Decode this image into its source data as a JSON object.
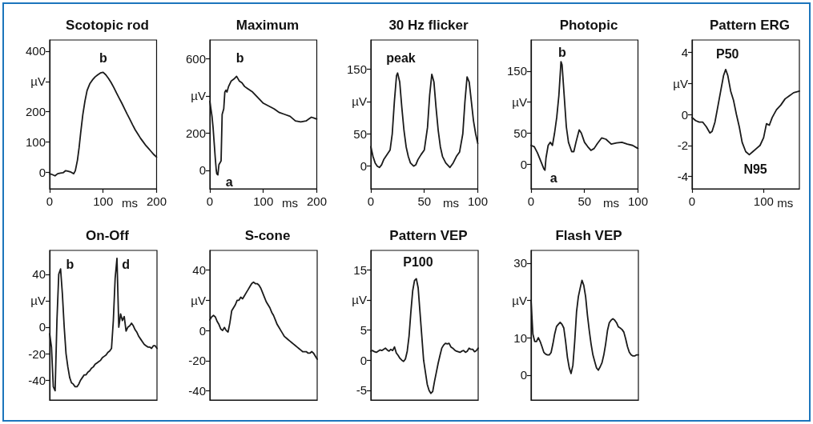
{
  "chart_data": [
    {
      "type": "line",
      "title": "Scotopic rod",
      "xlabel": "ms",
      "xlim": [
        0,
        200
      ],
      "xticks": [
        0,
        100,
        200
      ],
      "ylim": [
        -55,
        437
      ],
      "yticks": [
        0,
        100,
        200,
        {
          "value": 300,
          "label": "µV"
        },
        400
      ],
      "x": [
        0,
        5,
        10,
        15,
        20,
        25,
        30,
        35,
        40,
        45,
        48,
        52,
        55,
        58,
        62,
        66,
        70,
        75,
        80,
        85,
        90,
        95,
        100,
        105,
        110,
        115,
        120,
        125,
        130,
        135,
        140,
        145,
        150,
        155,
        160,
        165,
        170,
        175,
        180,
        185,
        190,
        195,
        200
      ],
      "series": [
        {
          "color": "#1a1a1a",
          "values": [
            -5,
            -8,
            -12,
            -5,
            -3,
            -2,
            5,
            3,
            0,
            -5,
            5,
            40,
            80,
            130,
            190,
            235,
            270,
            292,
            305,
            315,
            322,
            328,
            330,
            322,
            310,
            296,
            280,
            262,
            245,
            228,
            210,
            192,
            175,
            157,
            140,
            126,
            112,
            100,
            88,
            78,
            68,
            58,
            50
          ]
        }
      ],
      "annotations": [
        "b"
      ]
    },
    {
      "type": "line",
      "title": "Maximum",
      "xlabel": "ms",
      "xlim": [
        0,
        200
      ],
      "xticks": [
        0,
        100,
        200
      ],
      "ylim": [
        -100,
        700
      ],
      "yticks": [
        0,
        200,
        {
          "value": 400,
          "label": "µV"
        },
        600
      ],
      "x": [
        0,
        2,
        4,
        6,
        8,
        10,
        12,
        13,
        15,
        17,
        19,
        21,
        23,
        26,
        28,
        30,
        32,
        35,
        40,
        45,
        50,
        55,
        60,
        65,
        70,
        80,
        90,
        100,
        110,
        120,
        130,
        140,
        150,
        160,
        170,
        180,
        185,
        190,
        195,
        200
      ],
      "series": [
        {
          "color": "#1a1a1a",
          "values": [
            370,
            330,
            290,
            230,
            150,
            70,
            0,
            -20,
            -25,
            30,
            40,
            50,
            300,
            330,
            420,
            430,
            420,
            450,
            480,
            490,
            505,
            480,
            470,
            450,
            440,
            420,
            390,
            360,
            345,
            330,
            310,
            300,
            290,
            265,
            260,
            265,
            275,
            285,
            280,
            275
          ]
        }
      ],
      "annotations": [
        "b",
        "a"
      ]
    },
    {
      "type": "line",
      "title": "30 Hz flicker",
      "xlabel": "ms",
      "xlim": [
        0,
        100
      ],
      "xticks": [
        0,
        50,
        100
      ],
      "ylim": [
        -35,
        195
      ],
      "yticks": [
        0,
        50,
        {
          "value": 100,
          "label": "µV"
        },
        150
      ],
      "x": [
        0,
        2,
        4,
        6,
        8,
        10,
        12,
        14,
        16,
        18,
        20,
        22,
        24,
        25,
        27,
        29,
        31,
        33,
        35,
        37,
        40,
        42,
        44,
        47,
        50,
        53,
        55,
        57,
        59,
        61,
        63,
        65,
        67,
        70,
        74,
        77,
        80,
        83,
        86,
        88,
        90,
        92,
        94,
        96,
        98,
        100
      ],
      "series": [
        {
          "color": "#1a1a1a",
          "values": [
            30,
            15,
            5,
            0,
            -2,
            2,
            10,
            15,
            20,
            25,
            50,
            100,
            140,
            144,
            130,
            90,
            55,
            30,
            15,
            5,
            0,
            2,
            10,
            18,
            25,
            60,
            110,
            142,
            130,
            90,
            55,
            30,
            15,
            5,
            -2,
            5,
            15,
            22,
            50,
            100,
            138,
            130,
            100,
            70,
            50,
            35
          ]
        }
      ],
      "annotations": [
        "peak"
      ]
    },
    {
      "type": "line",
      "title": "Photopic",
      "xlabel": "ms",
      "xlim": [
        0,
        100
      ],
      "xticks": [
        0,
        50,
        100
      ],
      "ylim": [
        -40,
        200
      ],
      "yticks": [
        0,
        50,
        {
          "value": 100,
          "label": "µV"
        },
        150
      ],
      "x": [
        0,
        3,
        6,
        9,
        12,
        13,
        14,
        16,
        18,
        20,
        22,
        24,
        26,
        28,
        29,
        31,
        33,
        35,
        38,
        40,
        42,
        45,
        47,
        50,
        53,
        56,
        59,
        62,
        66,
        70,
        75,
        80,
        85,
        90,
        95,
        100
      ],
      "series": [
        {
          "color": "#1a1a1a",
          "values": [
            30,
            28,
            18,
            5,
            -8,
            -10,
            10,
            30,
            35,
            30,
            50,
            75,
            110,
            165,
            160,
            110,
            60,
            35,
            20,
            20,
            35,
            55,
            50,
            35,
            28,
            22,
            25,
            33,
            42,
            40,
            32,
            34,
            35,
            32,
            30,
            25
          ]
        }
      ],
      "annotations": [
        "b",
        "a"
      ]
    },
    {
      "type": "line",
      "title": "Pattern ERG",
      "xlabel": "ms",
      "xlim": [
        0,
        150
      ],
      "xticks": [
        0,
        100
      ],
      "ylim": [
        -4.8,
        4.8
      ],
      "yticks": [
        -4,
        -2,
        0,
        {
          "value": 2,
          "label": "µV"
        },
        4
      ],
      "x": [
        0,
        5,
        10,
        15,
        20,
        25,
        28,
        32,
        36,
        40,
        44,
        47,
        50,
        54,
        58,
        62,
        66,
        70,
        75,
        80,
        85,
        90,
        95,
        100,
        104,
        108,
        112,
        118,
        124,
        130,
        136,
        142,
        150
      ],
      "series": [
        {
          "color": "#1a1a1a",
          "values": [
            -0.2,
            -0.4,
            -0.5,
            -0.5,
            -0.8,
            -1.2,
            -1.1,
            -0.5,
            0.5,
            1.5,
            2.5,
            2.9,
            2.5,
            1.5,
            0.9,
            0,
            -0.8,
            -1.8,
            -2.4,
            -2.6,
            -2.4,
            -2.2,
            -2.0,
            -1.5,
            -0.6,
            -0.7,
            -0.2,
            0.3,
            0.6,
            1.0,
            1.2,
            1.4,
            1.5
          ]
        }
      ],
      "annotations": [
        "P50",
        "N95"
      ]
    },
    {
      "type": "line",
      "title": "On-Off",
      "tick_labels": "y",
      "ylim": [
        -55,
        58
      ],
      "yticks": [
        -40,
        -20,
        0,
        {
          "value": 20,
          "label": "µV"
        },
        40
      ],
      "categories": [
        null,
        null,
        null,
        null,
        null,
        null,
        null,
        null,
        null,
        null,
        null,
        null,
        null,
        null,
        null,
        null,
        null,
        null,
        null,
        null,
        null,
        null,
        null,
        null,
        null,
        null,
        null,
        null,
        null,
        null,
        null,
        null,
        null,
        null,
        null,
        null,
        null,
        null,
        null,
        null,
        null,
        null,
        null,
        null,
        null,
        null,
        null,
        null,
        null,
        null,
        null,
        null,
        null,
        null,
        null,
        null,
        null,
        null,
        null,
        null
      ],
      "series": [
        {
          "color": "#1a1a1a",
          "values": [
            -5,
            -15,
            -45,
            -48,
            5,
            40,
            44,
            25,
            0,
            -20,
            -30,
            -38,
            -42,
            -43,
            -45,
            -45,
            -43,
            -40,
            -38,
            -36,
            -36,
            -34,
            -33,
            -31,
            -30,
            -28,
            -27,
            -26,
            -25,
            -23,
            -22,
            -21,
            -19,
            -18,
            -16,
            5,
            37,
            52,
            0,
            10,
            5,
            8,
            -3,
            0,
            1,
            3,
            1,
            -2,
            -4,
            -7,
            -9,
            -11,
            -13,
            -14,
            -15,
            -15,
            -16,
            -14,
            -14,
            -16
          ]
        }
      ],
      "annotations": [
        "b",
        "d"
      ]
    },
    {
      "type": "line",
      "title": "S-cone",
      "tick_labels": "y",
      "ylim": [
        -46,
        53
      ],
      "yticks": [
        -40,
        -20,
        0,
        {
          "value": 20,
          "label": "µV"
        },
        40
      ],
      "categories": [
        null,
        null,
        null,
        null,
        null,
        null,
        null,
        null,
        null,
        null,
        null,
        null,
        null,
        null,
        null,
        null,
        null,
        null,
        null,
        null,
        null,
        null,
        null,
        null,
        null,
        null,
        null,
        null,
        null,
        null,
        null,
        null,
        null,
        null,
        null,
        null,
        null,
        null,
        null,
        null,
        null,
        null,
        null,
        null,
        null,
        null,
        null,
        null,
        null,
        null,
        null,
        null,
        null,
        null,
        null,
        null,
        null,
        null,
        null,
        null
      ],
      "series": [
        {
          "color": "#1a1a1a",
          "values": [
            7,
            9,
            10,
            9,
            6,
            4,
            1,
            0,
            2,
            0,
            -1,
            5,
            13,
            15,
            17,
            20,
            20,
            22,
            21,
            23,
            25,
            27,
            29,
            31,
            32,
            31,
            31,
            30,
            28,
            25,
            22,
            19,
            17,
            15,
            12,
            10,
            7,
            4,
            2,
            0,
            -2,
            -4,
            -5,
            -6,
            -7,
            -8,
            -9,
            -10,
            -11,
            -12,
            -13,
            -14,
            -14,
            -14,
            -15,
            -15,
            -14,
            -15,
            -17,
            -19
          ]
        }
      ]
    },
    {
      "type": "line",
      "title": "Pattern VEP",
      "tick_labels": "y",
      "ylim": [
        -6.6,
        18.2
      ],
      "yticks": [
        -5,
        0,
        5,
        {
          "value": 10,
          "label": "µV"
        },
        15
      ],
      "categories": [
        null,
        null,
        null,
        null,
        null,
        null,
        null,
        null,
        null,
        null,
        null,
        null,
        null,
        null,
        null,
        null,
        null,
        null,
        null,
        null,
        null,
        null,
        null,
        null,
        null,
        null,
        null,
        null,
        null,
        null,
        null,
        null,
        null,
        null,
        null,
        null,
        null,
        null,
        null,
        null,
        null,
        null,
        null,
        null,
        null,
        null,
        null,
        null,
        null,
        null,
        null,
        null,
        null,
        null,
        null,
        null,
        null,
        null,
        null,
        null
      ],
      "series": [
        {
          "color": "#1a1a1a",
          "values": [
            1.5,
            1.6,
            1.4,
            1.3,
            1.5,
            1.7,
            1.6,
            1.8,
            2.0,
            1.7,
            1.5,
            1.8,
            1.6,
            2.2,
            1.2,
            0.8,
            0.3,
            0,
            -0.2,
            0.2,
            1.5,
            4,
            8,
            11.5,
            13.2,
            13.5,
            12,
            8,
            4,
            0,
            -2,
            -4,
            -5,
            -5.5,
            -5.2,
            -3.5,
            -2,
            -0.5,
            0.8,
            2,
            2.5,
            2.8,
            2.7,
            2.8,
            2.2,
            2,
            1.7,
            1.5,
            1.4,
            1.3,
            1.5,
            1.6,
            1.3,
            1.5,
            2,
            1.8,
            1.8,
            1.4,
            1.6,
            2.0
          ]
        }
      ],
      "annotations": [
        "P100"
      ]
    },
    {
      "type": "line",
      "title": "Flash VEP",
      "tick_labels": "y",
      "ylim": [
        -6.7,
        33.4
      ],
      "yticks": [
        0,
        10,
        {
          "value": 20,
          "label": "µV"
        },
        30
      ],
      "categories": [
        null,
        null,
        null,
        null,
        null,
        null,
        null,
        null,
        null,
        null,
        null,
        null,
        null,
        null,
        null,
        null,
        null,
        null,
        null,
        null,
        null,
        null,
        null,
        null,
        null,
        null,
        null,
        null,
        null,
        null,
        null,
        null,
        null,
        null,
        null,
        null,
        null,
        null,
        null,
        null,
        null,
        null,
        null,
        null,
        null,
        null,
        null,
        null,
        null,
        null,
        null,
        null,
        null,
        null,
        null,
        null,
        null,
        null,
        null,
        null
      ],
      "series": [
        {
          "color": "#1a1a1a",
          "values": [
            20,
            11,
            9,
            9,
            10,
            9,
            7.6,
            6.1,
            5.6,
            5.4,
            5.4,
            6,
            8.3,
            11,
            13,
            13.6,
            14.1,
            13.6,
            12.6,
            9,
            4.7,
            1.9,
            0.4,
            2.6,
            9,
            16.9,
            21,
            23.3,
            25.4,
            24,
            21,
            16,
            11.9,
            8.3,
            5.4,
            3.6,
            1.9,
            1.3,
            2.2,
            3.3,
            5.4,
            8.3,
            11.9,
            14,
            14.7,
            15.1,
            14.7,
            14,
            12.9,
            12.6,
            12.2,
            11.5,
            9.7,
            7.6,
            6.1,
            5.4,
            5.1,
            5.1,
            5.4,
            5.4
          ]
        }
      ]
    }
  ]
}
